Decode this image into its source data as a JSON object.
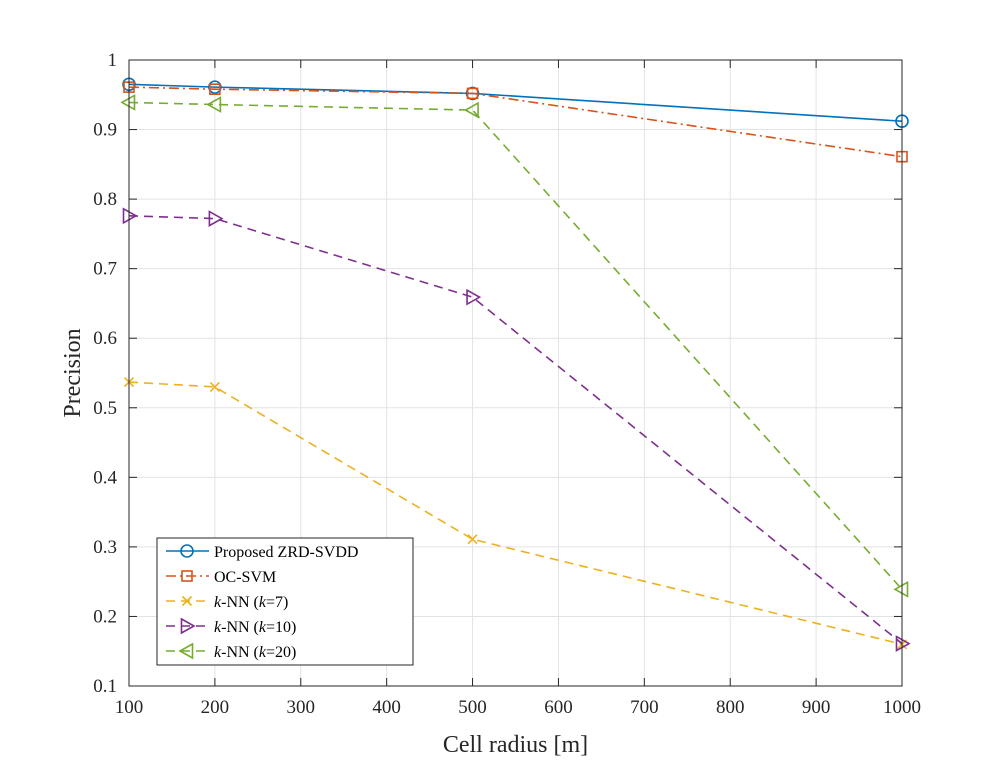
{
  "chart_data": {
    "type": "line",
    "title": "",
    "xlabel": "Cell radius [m]",
    "ylabel": "Precision",
    "xlim": [
      100,
      1000
    ],
    "ylim": [
      0.1,
      1
    ],
    "xticks": [
      100,
      200,
      300,
      400,
      500,
      600,
      700,
      800,
      900,
      1000
    ],
    "yticks": [
      0.1,
      0.2,
      0.3,
      0.4,
      0.5,
      0.6,
      0.7,
      0.8,
      0.9,
      1
    ],
    "ytick_labels": [
      "0.1",
      "0.2",
      "0.3",
      "0.4",
      "0.5",
      "0.6",
      "0.7",
      "0.8",
      "0.9",
      "1"
    ],
    "grid": true,
    "legend_position": "bottom-left",
    "x": [
      100,
      200,
      500,
      1000
    ],
    "series": [
      {
        "name": "Proposed ZRD-SVDD",
        "legend": [
          {
            "t": "Proposed ZRD-SVDD",
            "i": false
          }
        ],
        "color": "#0072BD",
        "dash": "solid",
        "marker": "circle",
        "values": [
          0.965,
          0.961,
          0.952,
          0.912
        ]
      },
      {
        "name": "OC-SVM",
        "legend": [
          {
            "t": "OC-SVM",
            "i": false
          }
        ],
        "color": "#D95319",
        "dash": "dashdot",
        "marker": "square",
        "values": [
          0.961,
          0.958,
          0.952,
          0.861
        ]
      },
      {
        "name": "k-NN (k=7)",
        "legend": [
          {
            "t": "k",
            "i": true
          },
          {
            "t": "-NN (",
            "i": false
          },
          {
            "t": "k",
            "i": true
          },
          {
            "t": "=7)",
            "i": false
          }
        ],
        "color": "#EDB120",
        "dash": "dashed",
        "marker": "x",
        "values": [
          0.537,
          0.53,
          0.311,
          0.16
        ]
      },
      {
        "name": "k-NN (k=10)",
        "legend": [
          {
            "t": "k",
            "i": true
          },
          {
            "t": "-NN (",
            "i": false
          },
          {
            "t": "k",
            "i": true
          },
          {
            "t": "=10)",
            "i": false
          }
        ],
        "color": "#7E2F8E",
        "dash": "dashed",
        "marker": "triangle-right",
        "values": [
          0.776,
          0.772,
          0.659,
          0.161
        ]
      },
      {
        "name": "k-NN (k=20)",
        "legend": [
          {
            "t": "k",
            "i": true
          },
          {
            "t": "-NN (",
            "i": false
          },
          {
            "t": "k",
            "i": true
          },
          {
            "t": "=20)",
            "i": false
          }
        ],
        "color": "#77AC30",
        "dash": "dashed",
        "marker": "triangle-left",
        "values": [
          0.939,
          0.936,
          0.928,
          0.239
        ]
      }
    ]
  }
}
